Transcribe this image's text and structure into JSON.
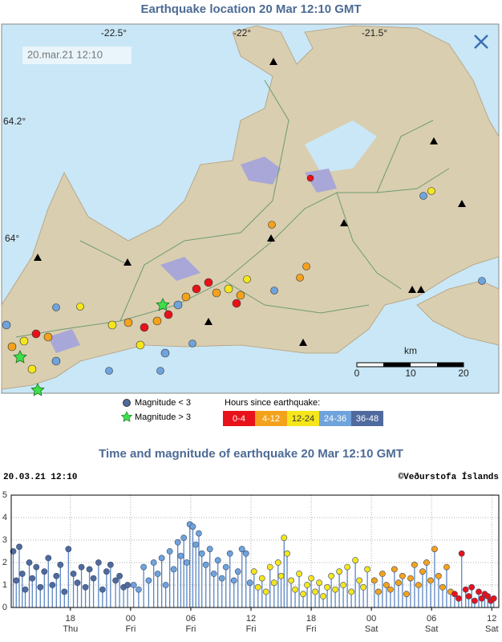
{
  "map": {
    "title": "Earthquake location   20 Mar 12:10 GMT",
    "timestamp": "20.mar.21  12:10",
    "lon_labels": [
      "-22.5°",
      "-22°",
      "-21.5°"
    ],
    "lat_labels": [
      "64.2°",
      "64°"
    ],
    "scale_unit": "km",
    "scale_ticks": [
      "0",
      "10",
      "20"
    ],
    "magnitude_legend": [
      "Magnitude < 3",
      "Magnitude > 3"
    ],
    "hours_title": "Hours since earthquake:",
    "hours_legend": [
      {
        "label": "0-4",
        "color": "#e8121a"
      },
      {
        "label": "4-12",
        "color": "#f4a21c"
      },
      {
        "label": "12-24",
        "color": "#f5e61c"
      },
      {
        "label": "24-36",
        "color": "#6fa3dc"
      },
      {
        "label": "36-48",
        "color": "#4f6a9e"
      }
    ]
  },
  "chart_data": {
    "type": "stem",
    "title": "Time and magnitude of earthquake   20 Mar 12:10 GMT",
    "timestamp": "20.03.21 12:10",
    "credit": "©Veðurstofa Íslands",
    "xlim": [
      12.1,
      60.7
    ],
    "xticks": [
      {
        "value": 18,
        "label": "18",
        "sublabel": "Thu"
      },
      {
        "value": 24,
        "label": "00",
        "sublabel": "Fri"
      },
      {
        "value": 30,
        "label": "06",
        "sublabel": "Fri"
      },
      {
        "value": 36,
        "label": "12",
        "sublabel": "Fri"
      },
      {
        "value": 42,
        "label": "18",
        "sublabel": "Fri"
      },
      {
        "value": 48,
        "label": "00",
        "sublabel": "Sat"
      },
      {
        "value": 54,
        "label": "06",
        "sublabel": "Sat"
      },
      {
        "value": 60,
        "label": "12",
        "sublabel": "Sat"
      }
    ],
    "ylim": [
      0,
      5
    ],
    "yticks": [
      0,
      1,
      2,
      3,
      4,
      5
    ],
    "grid": true,
    "series": [
      {
        "color": "#4f6a9e",
        "x": [
          12.3,
          12.6,
          12.9,
          13.2,
          13.5,
          13.9,
          14.2,
          14.6,
          15.0,
          15.4,
          15.8,
          16.2,
          16.6,
          17.0,
          17.4,
          17.8,
          18.3,
          18.7,
          19.1,
          19.5,
          19.9,
          20.3,
          20.8,
          21.2,
          21.6,
          22.0,
          22.5,
          22.9,
          23.3,
          23.7
        ],
        "values": [
          2.5,
          1.2,
          2.7,
          1.5,
          0.8,
          2.0,
          1.3,
          1.8,
          0.9,
          1.6,
          2.2,
          1.0,
          1.4,
          1.9,
          0.7,
          2.6,
          1.5,
          1.1,
          1.8,
          0.9,
          1.7,
          1.3,
          2.0,
          0.8,
          1.6,
          1.9,
          1.2,
          1.4,
          0.9,
          1.0
        ]
      },
      {
        "color": "#6fa3dc",
        "x": [
          24.3,
          24.8,
          25.3,
          25.8,
          26.3,
          26.7,
          27.1,
          27.5,
          27.9,
          28.3,
          28.7,
          29.0,
          29.3,
          29.6,
          29.9,
          30.2,
          30.5,
          30.8,
          31.1,
          31.5,
          31.9,
          32.3,
          32.7,
          33.1,
          33.5,
          33.9,
          34.3,
          34.7,
          35.1,
          35.5,
          35.9
        ],
        "values": [
          1.0,
          0.8,
          1.8,
          1.2,
          2.0,
          1.5,
          2.2,
          1.0,
          2.5,
          1.7,
          2.9,
          2.3,
          3.1,
          2.0,
          3.7,
          3.6,
          2.8,
          3.3,
          2.4,
          1.9,
          2.6,
          1.5,
          2.1,
          1.3,
          1.8,
          2.4,
          1.2,
          1.6,
          2.6,
          2.4,
          1.1
        ]
      },
      {
        "color": "#f5e61c",
        "x": [
          36.3,
          36.7,
          37.1,
          37.5,
          37.9,
          38.3,
          38.7,
          39.0,
          39.3,
          39.6,
          40.0,
          40.4,
          40.8,
          41.2,
          41.6,
          42.0,
          42.4,
          42.8,
          43.2,
          43.6,
          44.0,
          44.4,
          44.8,
          45.2,
          45.6,
          46.0,
          46.4,
          46.8,
          47.2,
          47.6
        ],
        "values": [
          1.6,
          0.9,
          1.3,
          0.7,
          1.8,
          1.1,
          2.0,
          1.4,
          3.1,
          2.4,
          1.2,
          0.8,
          1.5,
          0.6,
          1.0,
          1.3,
          0.7,
          1.1,
          0.5,
          0.9,
          1.4,
          0.8,
          1.6,
          1.0,
          1.8,
          0.7,
          2.1,
          1.2,
          0.9,
          1.7
        ]
      },
      {
        "color": "#f4a21c",
        "x": [
          48.3,
          48.7,
          49.1,
          49.5,
          49.9,
          50.3,
          50.7,
          51.1,
          51.5,
          51.9,
          52.3,
          52.7,
          53.1,
          53.5,
          53.9,
          54.3,
          54.7,
          55.1,
          55.5,
          55.9
        ],
        "values": [
          1.2,
          0.7,
          1.5,
          1.0,
          0.8,
          1.7,
          1.1,
          1.4,
          0.6,
          1.3,
          1.9,
          1.0,
          1.6,
          2.0,
          1.2,
          2.6,
          1.4,
          0.9,
          1.8,
          0.7
        ]
      },
      {
        "color": "#e8121a",
        "x": [
          56.3,
          56.7,
          57.0,
          57.4,
          57.7,
          58.0,
          58.3,
          58.7,
          59.0,
          59.3,
          59.6,
          59.9,
          60.2
        ],
        "values": [
          0.6,
          0.4,
          2.4,
          0.8,
          0.5,
          0.9,
          0.3,
          0.7,
          0.4,
          0.6,
          0.5,
          0.3,
          0.4
        ]
      }
    ]
  }
}
